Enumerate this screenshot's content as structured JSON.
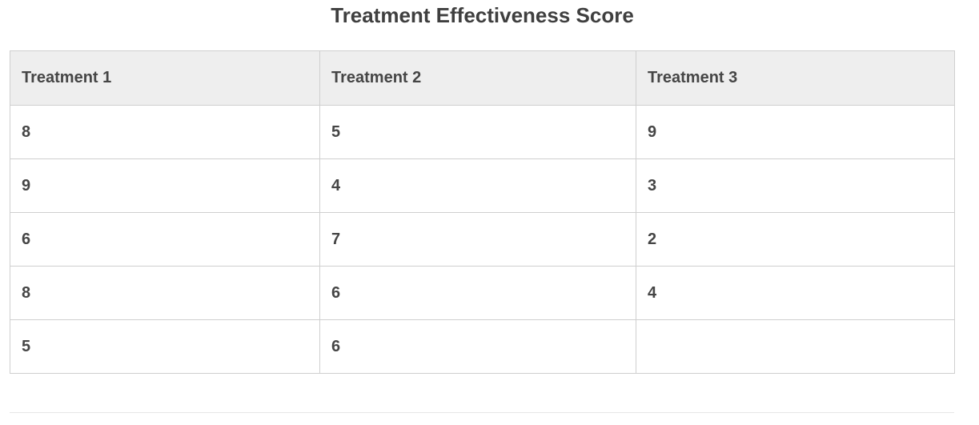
{
  "title": "Treatment Effectiveness Score",
  "table": {
    "headers": [
      "Treatment 1",
      "Treatment 2",
      "Treatment 3"
    ],
    "rows": [
      [
        "8",
        "5",
        "9"
      ],
      [
        "9",
        "4",
        "3"
      ],
      [
        "6",
        "7",
        "2"
      ],
      [
        "8",
        "6",
        "4"
      ],
      [
        "5",
        "6",
        ""
      ]
    ]
  },
  "colors": {
    "header_bg": "#eeeeee",
    "border": "#cfcfcf",
    "text": "#454545"
  }
}
